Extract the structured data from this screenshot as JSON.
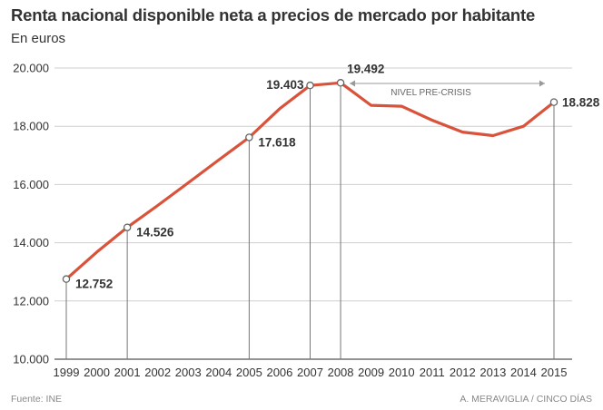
{
  "chart_data": {
    "type": "line",
    "title": "Renta nacional disponible neta a precios de mercado por habitante",
    "subtitle": "En euros",
    "x": [
      "1999",
      "2000",
      "2001",
      "2002",
      "2003",
      "2004",
      "2005",
      "2006",
      "2007",
      "2008",
      "2009",
      "2010",
      "2011",
      "2012",
      "2013",
      "2014",
      "2015"
    ],
    "values": [
      12752,
      13680,
      14526,
      15280,
      16060,
      16840,
      17618,
      18600,
      19403,
      19492,
      18720,
      18690,
      18210,
      17800,
      17680,
      18000,
      18828
    ],
    "ylim": [
      10000,
      20000
    ],
    "yticks": [
      10000,
      12000,
      14000,
      16000,
      18000,
      20000
    ],
    "ytick_labels": [
      "10.000",
      "12.000",
      "14.000",
      "16.000",
      "18.000",
      "20.000"
    ],
    "grid": true,
    "line_color": "#d9533a",
    "labeled_points": [
      {
        "x": "1999",
        "label": "12.752"
      },
      {
        "x": "2001",
        "label": "14.526"
      },
      {
        "x": "2005",
        "label": "17.618"
      },
      {
        "x": "2007",
        "label": "19.403"
      },
      {
        "x": "2008",
        "label": "19.492"
      },
      {
        "x": "2015",
        "label": "18.828"
      }
    ],
    "annotation": {
      "text": "NIVEL PRE-CRISIS",
      "from": "2008",
      "to": "2015"
    }
  },
  "footer": {
    "source": "Fuente: INE",
    "credit": "A. MERAVIGLIA / CINCO DÍAS"
  }
}
